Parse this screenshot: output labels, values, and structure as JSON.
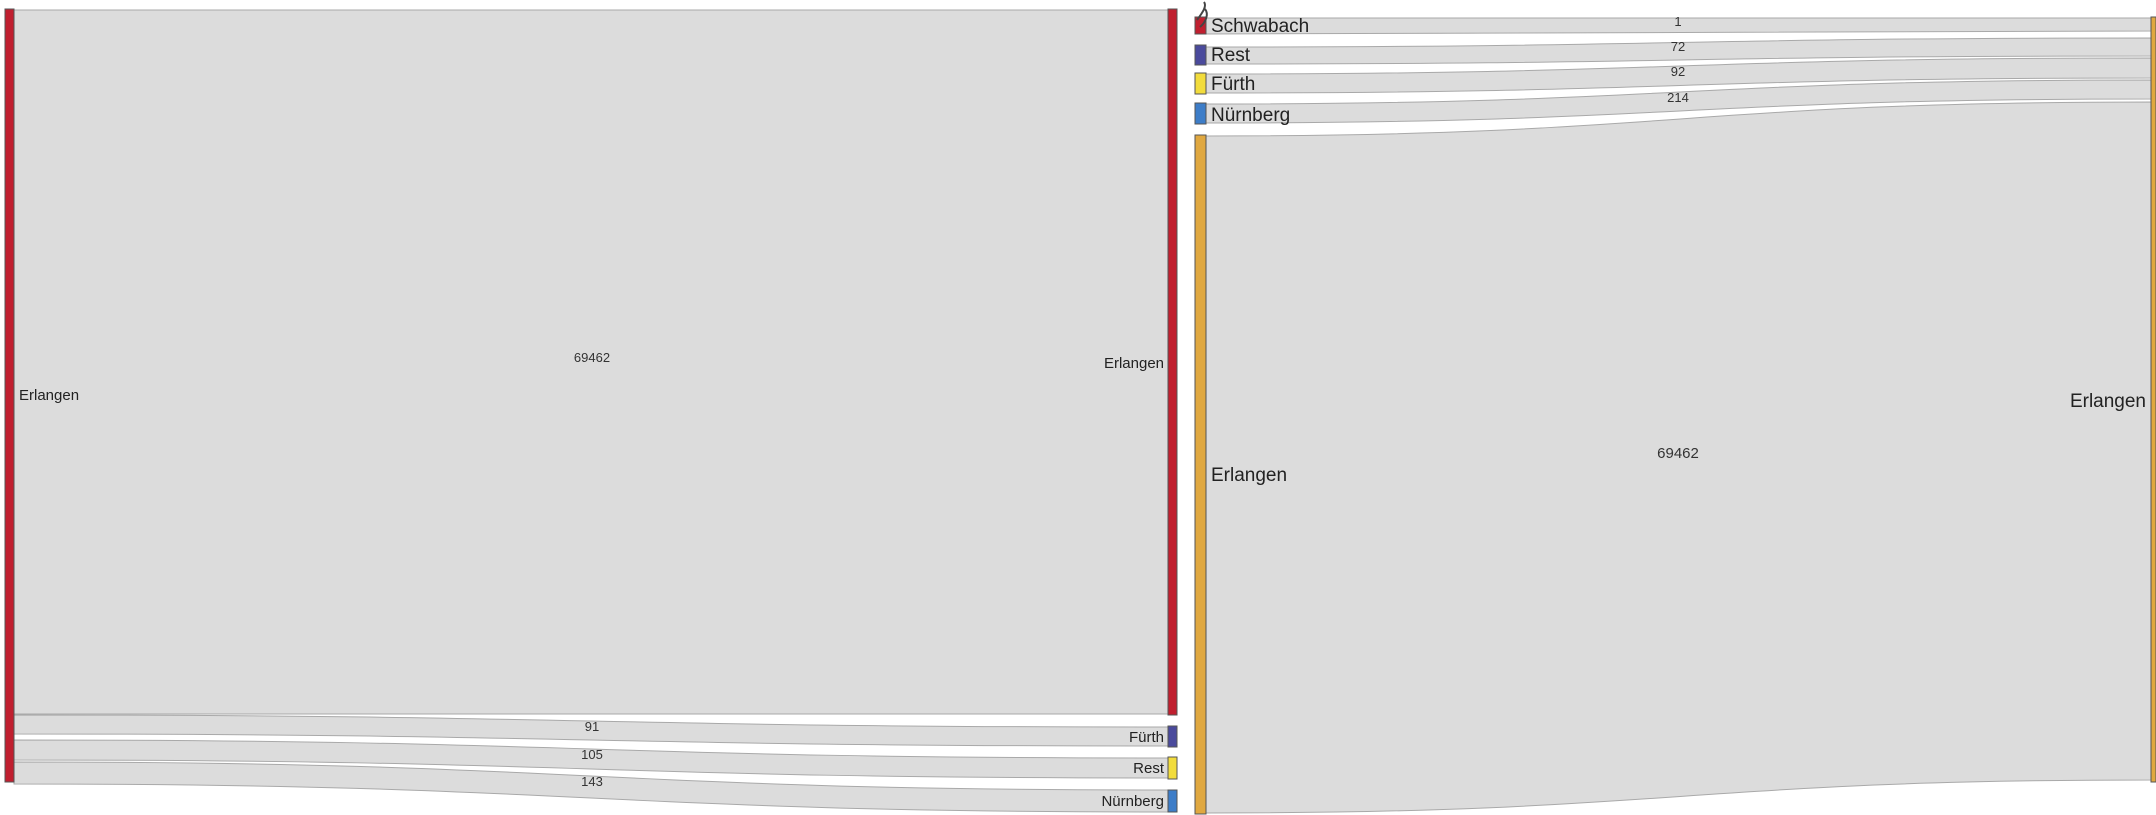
{
  "colors": {
    "link": "#dcdcdc",
    "erlangen_red": "#c01f2f",
    "erlangen_orange": "#e0a840",
    "fuerth_left": "#4a4a9c",
    "fuerth_right": "#f2dc3c",
    "rest_left": "#f2dc3c",
    "rest_right": "#4a4a9c",
    "nuernberg": "#3d7dc8",
    "schwabach": "#c01f2f"
  },
  "left_diagram": {
    "source": {
      "label": "Erlangen"
    },
    "targets": [
      {
        "label": "Erlangen",
        "value": "69462"
      },
      {
        "label": "Fürth",
        "value": "91"
      },
      {
        "label": "Rest",
        "value": "105"
      },
      {
        "label": "Nürnberg",
        "value": "143"
      }
    ]
  },
  "right_diagram": {
    "sources": [
      {
        "label": "Schwabach",
        "value": "1"
      },
      {
        "label": "Rest",
        "value": "72"
      },
      {
        "label": "Fürth",
        "value": "92"
      },
      {
        "label": "Nürnberg",
        "value": "214"
      },
      {
        "label": "Erlangen",
        "value": "69462"
      }
    ],
    "target": {
      "label": "Erlangen"
    }
  }
}
